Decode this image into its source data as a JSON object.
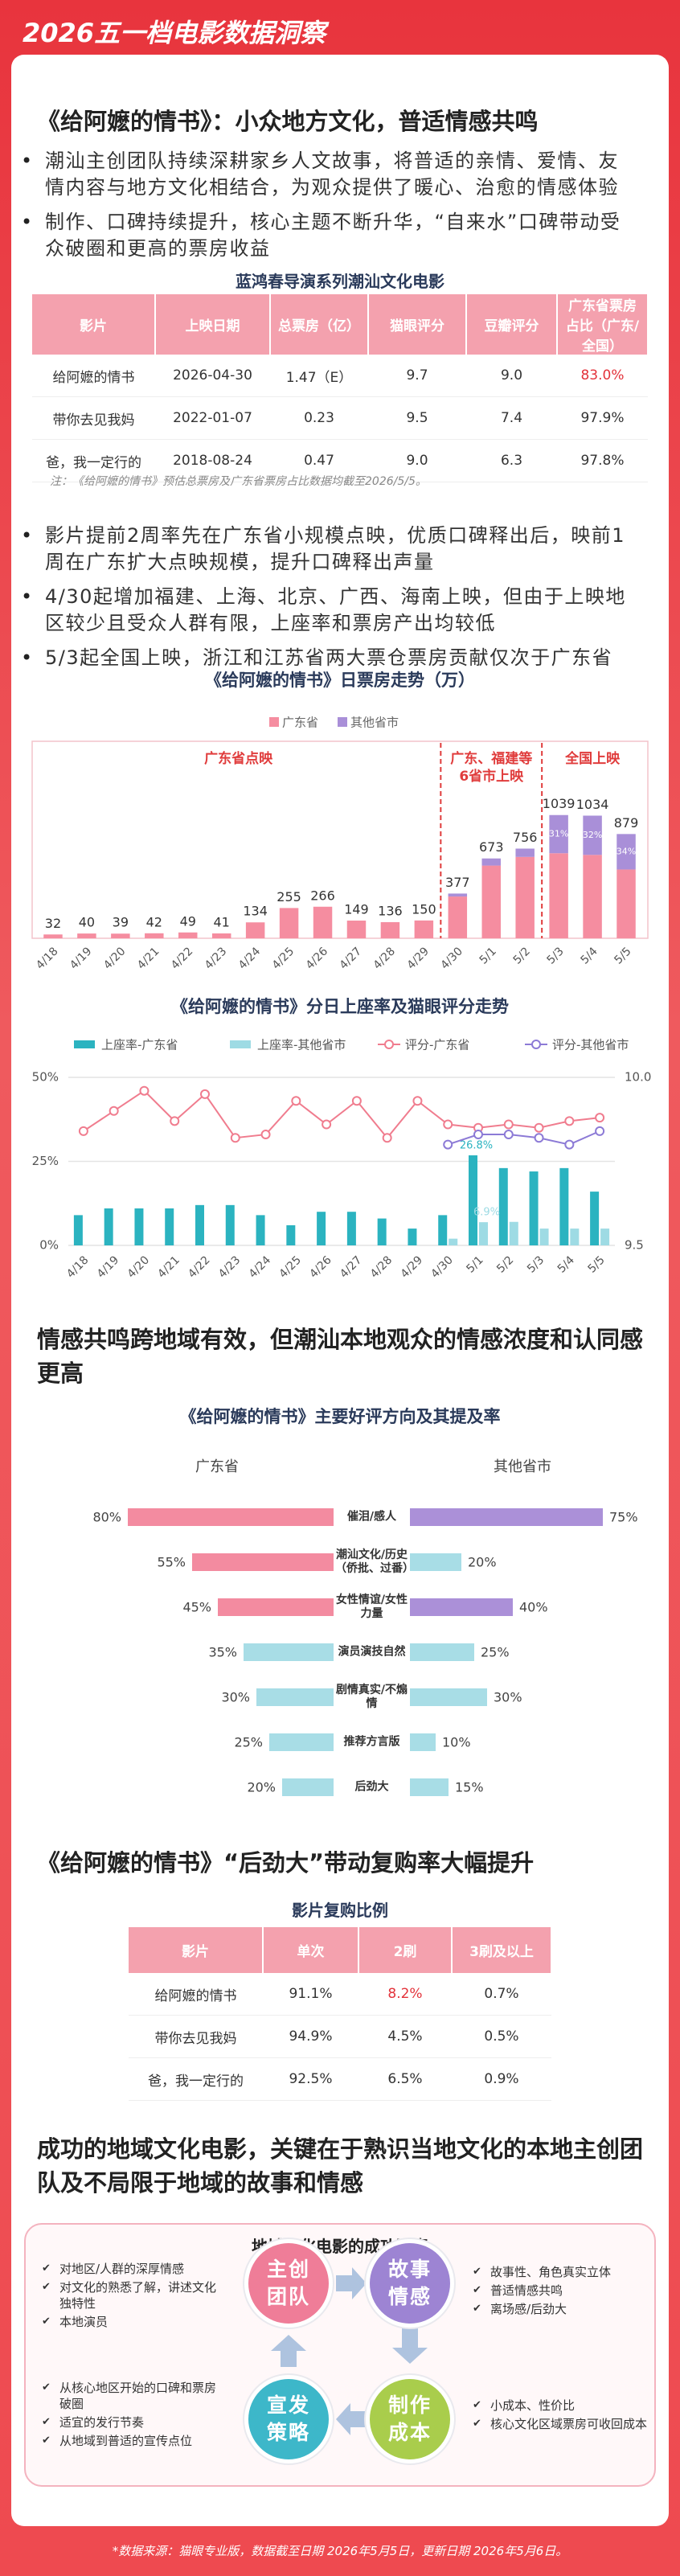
{
  "header": {
    "title": "2026五一档电影数据洞察"
  },
  "section1": {
    "title": "《给阿嬷的情书》：小众地方文化，普适情感共鸣",
    "bullets": [
      "潮汕主创团队持续深耕家乡人文故事，将普适的亲情、爱情、友情内容与地方文化相结合，为观众提供了暖心、治愈的情感体验",
      "制作、口碑持续提升，核心主题不断升华，“自来水”口碑带动受众破圈和更高的票房收益"
    ]
  },
  "table1": {
    "title": "蓝鸿春导演系列潮汕文化电影",
    "columns": [
      "影片",
      "上映日期",
      "总票房（亿）",
      "猫眼评分",
      "豆瓣评分",
      "广东省票房占比（广东/全国）"
    ],
    "rows": [
      [
        "给阿嬷的情书",
        "2026-04-30",
        "1.47（E）",
        "9.7",
        "9.0",
        "83.0%"
      ],
      [
        "带你去见我妈",
        "2022-01-07",
        "0.23",
        "9.5",
        "7.4",
        "97.9%"
      ],
      [
        "爸，我一定行的",
        "2018-08-24",
        "0.47",
        "9.0",
        "6.3",
        "97.8%"
      ]
    ],
    "highlight": [
      0,
      5
    ],
    "note": "注：《给阿嬷的情书》预估总票房及广东省票房占比数据均截至2026/5/5。"
  },
  "section2": {
    "bullets": [
      "影片提前2周率先在广东省小规模点映，优质口碑释出后，映前1周在广东扩大点映规模，提升口碑释出声量",
      "4/30起增加福建、上海、北京、广西、海南上映，但由于上映地区较少且受众人群有限，上座率和票房产出均较低",
      "5/3起全国上映，浙江和江苏省两大票仓票房贡献仅次于广东省"
    ]
  },
  "chart_data": [
    {
      "type": "stacked_bar",
      "title": "《给阿嬷的情书》日票房走势（万）",
      "categories": [
        "4/18",
        "4/19",
        "4/20",
        "4/21",
        "4/22",
        "4/23",
        "4/24",
        "4/25",
        "4/26",
        "4/27",
        "4/28",
        "4/29",
        "4/30",
        "5/1",
        "5/2",
        "5/3",
        "5/4",
        "5/5"
      ],
      "series": [
        {
          "name": "广东省",
          "color": "#f58da0",
          "values": [
            32,
            40,
            39,
            42,
            49,
            41,
            134,
            255,
            266,
            149,
            136,
            150,
            352,
            613,
            686,
            717,
            703,
            580
          ]
        },
        {
          "name": "其他省市",
          "color": "#a98fd8",
          "values": [
            0,
            0,
            0,
            0,
            0,
            0,
            0,
            0,
            0,
            0,
            0,
            0,
            25,
            60,
            70,
            322,
            331,
            299
          ]
        }
      ],
      "total_labels": [
        "32",
        "40",
        "39",
        "42",
        "49",
        "41",
        "134",
        "255",
        "266",
        "149",
        "136",
        "150",
        "377",
        "673",
        "756",
        "1039",
        "1034",
        "879"
      ],
      "share_labels": [
        {
          "category": "5/3",
          "label": "31%"
        },
        {
          "category": "5/4",
          "label": "32%"
        },
        {
          "category": "5/5",
          "label": "34%"
        }
      ],
      "phases": [
        {
          "lines": [
            "广东省点映"
          ],
          "from": "4/18",
          "to": "4/29"
        },
        {
          "lines": [
            "广东、福建等",
            "6省市上映"
          ],
          "from": "4/30",
          "to": "5/2"
        },
        {
          "lines": [
            "全国上映"
          ],
          "from": "5/3",
          "to": "5/5"
        }
      ],
      "ylim": [
        0,
        1200
      ]
    },
    {
      "type": "bar_line",
      "title": "《给阿嬷的情书》分日上座率及猫眼评分走势",
      "categories": [
        "4/18",
        "4/19",
        "4/20",
        "4/21",
        "4/22",
        "4/23",
        "4/24",
        "4/25",
        "4/26",
        "4/27",
        "4/28",
        "4/29",
        "4/30",
        "5/1",
        "5/2",
        "5/3",
        "5/4",
        "5/5"
      ],
      "series": [
        {
          "name": "上座率-广东省",
          "kind": "bar",
          "color": "#2bb3c0",
          "values": [
            9,
            11,
            11,
            11,
            12,
            12,
            9,
            6,
            10,
            10,
            8,
            5,
            9,
            26.8,
            23,
            22,
            23,
            16
          ],
          "value_labels": [
            null,
            null,
            null,
            null,
            null,
            null,
            null,
            null,
            null,
            null,
            null,
            null,
            null,
            "26.8%",
            null,
            null,
            null,
            null
          ]
        },
        {
          "name": "上座率-其他省市",
          "kind": "bar",
          "color": "#9edbe4",
          "values": [
            null,
            null,
            null,
            null,
            null,
            null,
            null,
            null,
            null,
            null,
            null,
            null,
            2,
            6.9,
            7,
            5,
            5,
            5
          ],
          "value_labels": [
            null,
            null,
            null,
            null,
            null,
            null,
            null,
            null,
            null,
            null,
            null,
            null,
            null,
            "6.9%",
            null,
            null,
            null,
            null
          ]
        },
        {
          "name": "评分-广东省",
          "kind": "line",
          "axis": "y2",
          "color": "#f07c8e",
          "values": [
            9.84,
            9.9,
            9.96,
            9.87,
            9.95,
            9.82,
            9.83,
            9.93,
            9.86,
            9.93,
            9.82,
            9.93,
            9.86,
            9.85,
            9.86,
            9.85,
            9.87,
            9.88
          ]
        },
        {
          "name": "评分-其他省市",
          "kind": "line",
          "axis": "y2",
          "color": "#8c7ad6",
          "values": [
            null,
            null,
            null,
            null,
            null,
            null,
            null,
            null,
            null,
            null,
            null,
            null,
            9.8,
            9.83,
            9.83,
            9.82,
            9.8,
            9.84
          ]
        }
      ],
      "ylim": [
        0,
        50
      ],
      "yticks": [
        {
          "value": 0,
          "label": "0%"
        },
        {
          "value": 25,
          "label": "25%"
        },
        {
          "value": 50,
          "label": "50%"
        }
      ],
      "y2lim": [
        9.5,
        10
      ],
      "y2ticks": [
        9.5,
        {
          "value": 10,
          "label": "10.0"
        }
      ],
      "grid": true
    },
    {
      "type": "butterfly_bar",
      "title": "《给阿嬷的情书》主要好评方向及其提及率",
      "categories": [
        "催泪/感人",
        "潮汕文化/历史（侨批、过番）",
        "女性情谊/女性力量",
        "演员演技自然",
        "剧情真实/不煽情",
        "推荐方言版",
        "后劲大"
      ],
      "series": [
        {
          "name": "广东省",
          "values": [
            80,
            55,
            45,
            35,
            30,
            25,
            20
          ],
          "value_labels": [
            "80%",
            "55%",
            "45%",
            "35%",
            "30%",
            "25%",
            "20%"
          ],
          "colors": [
            "#f38ba0",
            "#f38ba0",
            "#f38ba0",
            "#a8dde6",
            "#a8dde6",
            "#a8dde6",
            "#a8dde6"
          ]
        },
        {
          "name": "其他省市",
          "values": [
            75,
            20,
            40,
            25,
            30,
            10,
            15
          ],
          "value_labels": [
            "75%",
            "20%",
            "40%",
            "25%",
            "30%",
            "10%",
            "15%"
          ],
          "colors": [
            "#ab90d8",
            "#a8dde6",
            "#ab90d8",
            "#a8dde6",
            "#a8dde6",
            "#a8dde6",
            "#a8dde6"
          ]
        }
      ],
      "xlim": [
        0,
        100
      ]
    }
  ],
  "section3": {
    "title": "情感共鸣跨地域有效，但潮汕本地观众的情感浓度和认同感更高"
  },
  "section4": {
    "title": "《给阿嬷的情书》“后劲大”带动复购率大幅提升"
  },
  "table2": {
    "title": "影片复购比例",
    "columns": [
      "影片",
      "单次",
      "2刷",
      "3刷及以上"
    ],
    "rows": [
      [
        "给阿嬷的情书",
        "91.1%",
        "8.2%",
        "0.7%"
      ],
      [
        "带你去见我妈",
        "94.9%",
        "4.5%",
        "0.5%"
      ],
      [
        "爸，我一定行的",
        "92.5%",
        "6.5%",
        "0.9%"
      ]
    ],
    "highlight": [
      0,
      2
    ]
  },
  "section5": {
    "title": "成功的地域文化电影，关键在于熟识当地文化的本地主创团队及不局限于地域的故事和情感"
  },
  "diagram": {
    "title": "地域文化电影的成功要素",
    "nodes": [
      {
        "label": "主创团队",
        "points": [
          "对地区/人群的深厚情感",
          "对文化的熟悉了解，讲述文化独特性",
          "本地演员"
        ]
      },
      {
        "label": "故事情感",
        "points": [
          "故事性、角色真实立体",
          "普适情感共鸣",
          "离场感/后劲大"
        ]
      },
      {
        "label": "制作成本",
        "points": [
          "小成本、性价比",
          "核心文化区域票房可收回成本"
        ]
      },
      {
        "label": "宣发策略",
        "points": [
          "从核心地区开始的口碑和票房破圈",
          "适宜的发行节奏",
          "从地域到普适的宣传点位"
        ]
      }
    ]
  },
  "footer": "*数据来源：猫眼专业版，数据截至日期 2026年5月5日，更新日期 2026年5月6日。"
}
